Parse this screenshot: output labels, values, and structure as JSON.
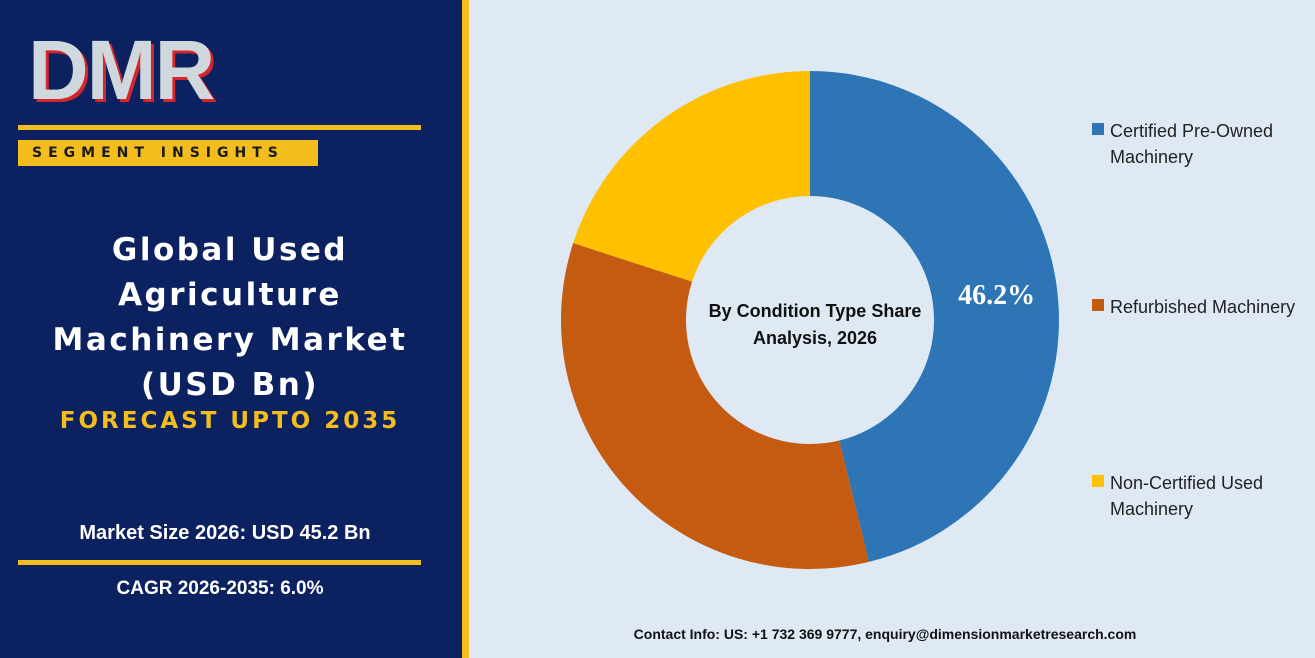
{
  "logo": "DMR",
  "badge": "SEGMENT INSIGHTS",
  "title": "Global Used Agriculture Machinery Market (USD Bn)",
  "forecast": "FORECAST UPTO 2035",
  "market_size": "Market Size 2026: USD 45.2 Bn",
  "cagr": "CAGR 2026-2035: 6.0%",
  "contact": "Contact Info: US: +1 732 369 9777, enquiry@dimensionmarketresearch.com",
  "chart_data": {
    "type": "donut",
    "center_label": "By Condition Type Share Analysis, 2026",
    "categories": [
      "Certified Pre-Owned Machinery",
      "Refurbished Machinery",
      "Non-Certified Used Machinery"
    ],
    "values": [
      46.2,
      33.8,
      20.0
    ],
    "value_labels": [
      "46.2%",
      null,
      null
    ],
    "colors": [
      "#2e75b6",
      "#c55a11",
      "#ffc000"
    ]
  }
}
